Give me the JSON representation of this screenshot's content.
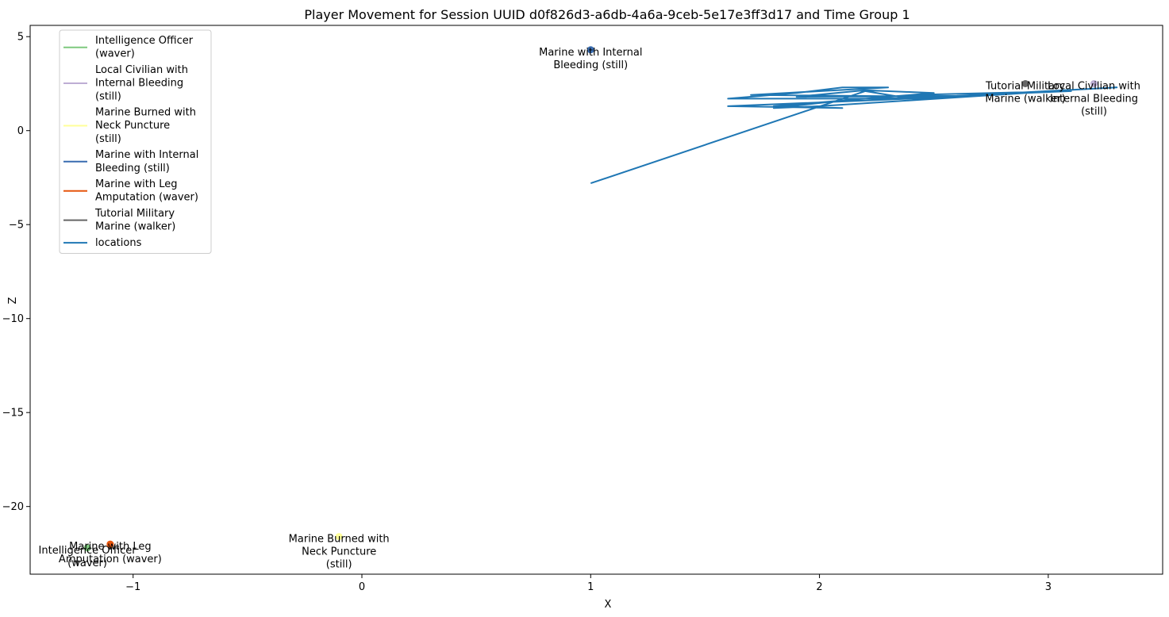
{
  "chart_data": {
    "type": "line",
    "title": "Player Movement for Session UUID d0f826d3-a6db-4a6a-9ceb-5e17e3ff3d17 and Time Group 1",
    "xlabel": "X",
    "ylabel": "Z",
    "xlim": [
      -1.45,
      3.5
    ],
    "ylim": [
      -23.6,
      5.6
    ],
    "xticks": [
      -1,
      0,
      1,
      2,
      3
    ],
    "yticks": [
      5,
      0,
      -5,
      -10,
      -15,
      -20
    ],
    "legend_position": "upper-left",
    "grid": false,
    "markers": [
      {
        "name": "Intelligence Officer (waver)",
        "legend_lines": [
          "Intelligence Officer",
          "(waver)"
        ],
        "label_lines": [
          "Intelligence Officer",
          "(waver)"
        ],
        "x": -1.2,
        "z": -22.2,
        "color": "#7fc97f"
      },
      {
        "name": "Local Civilian with Internal Bleeding (still)",
        "legend_lines": [
          "Local Civilian with",
          "Internal Bleeding",
          "(still)"
        ],
        "label_lines": [
          "Local Civilian with",
          "Internal Bleeding",
          "(still)"
        ],
        "x": 3.2,
        "z": 2.5,
        "color": "#beaed4"
      },
      {
        "name": "Marine Burned with Neck Puncture (still)",
        "legend_lines": [
          "Marine Burned with",
          "Neck Puncture",
          "(still)"
        ],
        "label_lines": [
          "Marine Burned with",
          "Neck Puncture",
          "(still)"
        ],
        "x": -0.1,
        "z": -21.6,
        "color": "#ffff99"
      },
      {
        "name": "Marine with Internal Bleeding (still)",
        "legend_lines": [
          "Marine with Internal",
          "Bleeding (still)"
        ],
        "label_lines": [
          "Marine with Internal",
          "Bleeding (still)"
        ],
        "x": 1.0,
        "z": 4.3,
        "color": "#386cb0"
      },
      {
        "name": "Marine with Leg Amputation (waver)",
        "legend_lines": [
          "Marine with Leg",
          "Amputation (waver)"
        ],
        "label_lines": [
          "Marine with Leg",
          "Amputation (waver)"
        ],
        "x": -1.1,
        "z": -22.0,
        "color": "#e6550d"
      },
      {
        "name": "Tutorial Military Marine (walker)",
        "legend_lines": [
          "Tutorial Military",
          "Marine (walker)"
        ],
        "label_lines": [
          "Tutorial Military",
          "Marine (walker)"
        ],
        "x": 2.9,
        "z": 2.5,
        "color": "#666666"
      }
    ],
    "series": [
      {
        "name": "locations",
        "color": "#1f77b4",
        "points": [
          [
            1.0,
            -2.8
          ],
          [
            2.2,
            2.1
          ],
          [
            2.4,
            1.7
          ],
          [
            1.6,
            1.3
          ],
          [
            2.1,
            1.2
          ],
          [
            1.8,
            1.3
          ],
          [
            2.2,
            1.7
          ],
          [
            2.6,
            1.8
          ],
          [
            1.7,
            1.9
          ],
          [
            2.3,
            2.3
          ],
          [
            2.1,
            2.3
          ],
          [
            1.9,
            2.0
          ],
          [
            1.6,
            1.7
          ],
          [
            2.5,
            1.7
          ],
          [
            2.7,
            1.9
          ],
          [
            3.3,
            2.3
          ],
          [
            2.6,
            1.85
          ],
          [
            1.9,
            1.8
          ],
          [
            2.2,
            2.15
          ],
          [
            2.5,
            2.0
          ],
          [
            2.1,
            1.6
          ],
          [
            1.8,
            1.2
          ],
          [
            2.0,
            1.3
          ],
          [
            2.9,
            2.0
          ],
          [
            3.1,
            2.1
          ],
          [
            2.4,
            1.9
          ]
        ]
      }
    ]
  }
}
